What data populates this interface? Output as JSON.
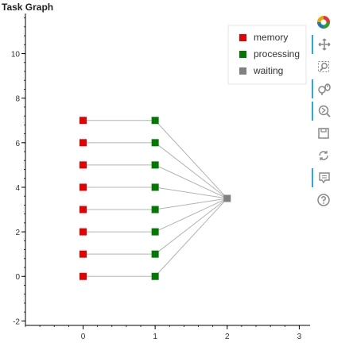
{
  "title": "Task Graph",
  "chart_data": {
    "type": "scatter",
    "xlim": [
      -0.8,
      3.15
    ],
    "ylim": [
      -2.2,
      11.8
    ],
    "x_ticks": [
      "0",
      "1",
      "2",
      "3"
    ],
    "y_ticks": [
      "-2",
      "0",
      "2",
      "4",
      "6",
      "8",
      "10"
    ],
    "legend_position": "top-right",
    "series": [
      {
        "name": "memory",
        "color": "#e60000",
        "points": [
          [
            0,
            0
          ],
          [
            0,
            1
          ],
          [
            0,
            2
          ],
          [
            0,
            3
          ],
          [
            0,
            4
          ],
          [
            0,
            5
          ],
          [
            0,
            6
          ],
          [
            0,
            7
          ]
        ]
      },
      {
        "name": "processing",
        "color": "#007a00",
        "points": [
          [
            1,
            0
          ],
          [
            1,
            1
          ],
          [
            1,
            2
          ],
          [
            1,
            3
          ],
          [
            1,
            4
          ],
          [
            1,
            5
          ],
          [
            1,
            6
          ],
          [
            1,
            7
          ]
        ]
      },
      {
        "name": "waiting",
        "color": "#808080",
        "points": [
          [
            2,
            3.5
          ]
        ]
      }
    ],
    "edges": [
      [
        [
          0,
          0
        ],
        [
          1,
          0
        ]
      ],
      [
        [
          0,
          1
        ],
        [
          1,
          1
        ]
      ],
      [
        [
          0,
          2
        ],
        [
          1,
          2
        ]
      ],
      [
        [
          0,
          3
        ],
        [
          1,
          3
        ]
      ],
      [
        [
          0,
          4
        ],
        [
          1,
          4
        ]
      ],
      [
        [
          0,
          5
        ],
        [
          1,
          5
        ]
      ],
      [
        [
          0,
          6
        ],
        [
          1,
          6
        ]
      ],
      [
        [
          0,
          7
        ],
        [
          1,
          7
        ]
      ],
      [
        [
          1,
          0
        ],
        [
          2,
          3.5
        ]
      ],
      [
        [
          1,
          1
        ],
        [
          2,
          3.5
        ]
      ],
      [
        [
          1,
          2
        ],
        [
          2,
          3.5
        ]
      ],
      [
        [
          1,
          3
        ],
        [
          2,
          3.5
        ]
      ],
      [
        [
          1,
          4
        ],
        [
          2,
          3.5
        ]
      ],
      [
        [
          1,
          5
        ],
        [
          2,
          3.5
        ]
      ],
      [
        [
          1,
          6
        ],
        [
          2,
          3.5
        ]
      ],
      [
        [
          1,
          7
        ],
        [
          2,
          3.5
        ]
      ]
    ],
    "edge_color": "#b3b3b3",
    "grid": false
  },
  "toolbar": {
    "tools": [
      {
        "name": "bokeh-logo",
        "active": false
      },
      {
        "name": "pan-icon",
        "active": true
      },
      {
        "name": "box-zoom-icon",
        "active": false
      },
      {
        "name": "wheel-zoom-icon",
        "active": true
      },
      {
        "name": "zoom-in-icon",
        "active": true
      },
      {
        "name": "save-icon",
        "active": false
      },
      {
        "name": "reset-icon",
        "active": false
      },
      {
        "name": "hover-icon",
        "active": true
      },
      {
        "name": "help-icon",
        "active": false
      }
    ]
  }
}
